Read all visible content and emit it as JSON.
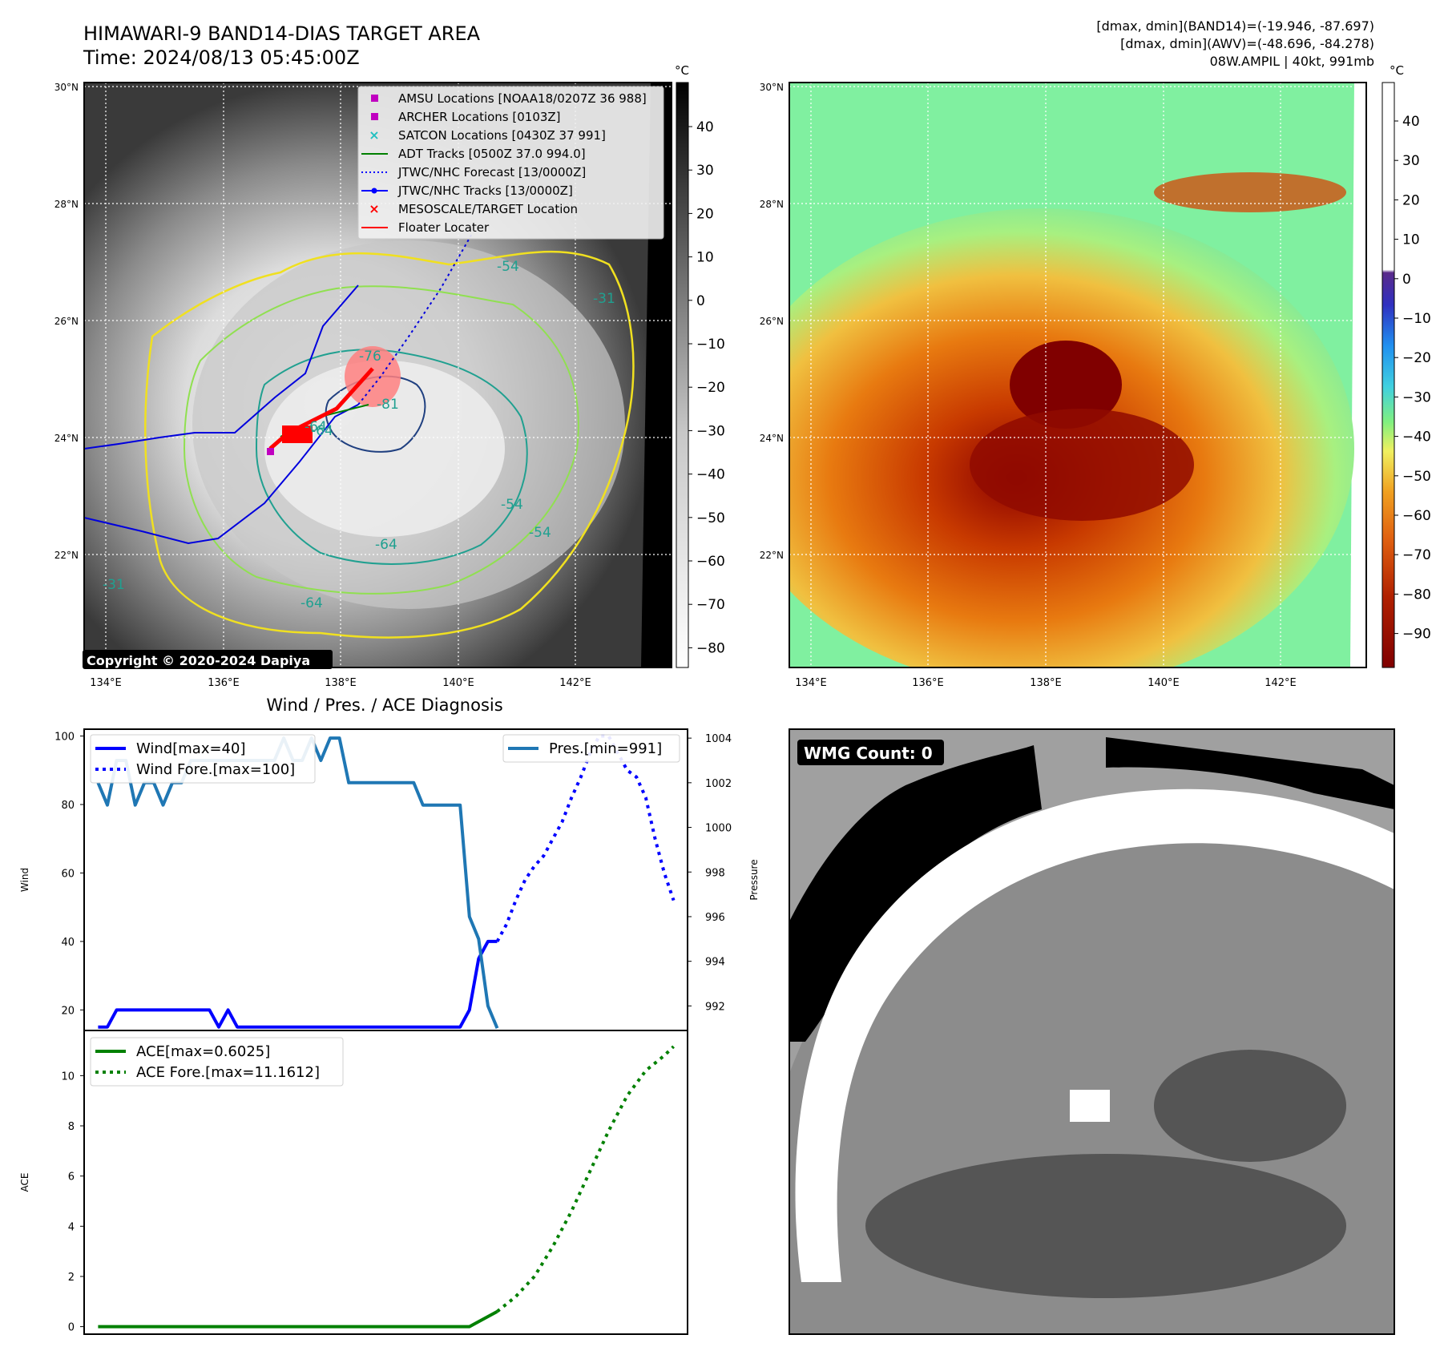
{
  "header": {
    "title_line1": "HIMAWARI-9 BAND14-DIAS TARGET AREA",
    "title_line2": "Time: 2024/08/13 05:45:00Z",
    "info_line1": "[dmax, dmin](BAND14)=(-19.946, -87.697)",
    "info_line2": "[dmax, dmin](AWV)=(-48.696, -84.278)",
    "info_line3": "08W.AMPIL | 40kt, 991mb"
  },
  "map_axes": {
    "lat_labels": [
      "30°N",
      "28°N",
      "26°N",
      "24°N",
      "22°N"
    ],
    "lon_labels": [
      "134°E",
      "136°E",
      "138°E",
      "140°E",
      "142°E"
    ]
  },
  "colorbar_left": {
    "unit": "°C",
    "ticks": [
      "40",
      "30",
      "20",
      "10",
      "0",
      "−10",
      "−20",
      "−30",
      "−40",
      "−50",
      "−60",
      "−70",
      "−80"
    ]
  },
  "colorbar_right": {
    "unit": "°C",
    "ticks": [
      "40",
      "30",
      "20",
      "10",
      "0",
      "−10",
      "−20",
      "−30",
      "−40",
      "−50",
      "−60",
      "−70",
      "−80",
      "−90"
    ]
  },
  "map_legend": [
    {
      "label": "AMSU Locations [NOAA18/0207Z 36 988]",
      "marker": "square",
      "color": "#c000c0"
    },
    {
      "label": "ARCHER Locations [0103Z]",
      "marker": "square",
      "color": "#c000c0"
    },
    {
      "label": "SATCON Locations [0430Z 37 991]",
      "marker": "x",
      "color": "#20c0c0"
    },
    {
      "label": "ADT Tracks [0500Z 37.0 994.0]",
      "marker": "line",
      "color": "#008000"
    },
    {
      "label": "JTWC/NHC Forecast [13/0000Z]",
      "marker": "dotted",
      "color": "#0000ff"
    },
    {
      "label": "JTWC/NHC Tracks [13/0000Z]",
      "marker": "line-dot",
      "color": "#0000ff"
    },
    {
      "label": "MESOSCALE/TARGET Location",
      "marker": "x",
      "color": "#ff0000"
    },
    {
      "label": "Floater Locater",
      "marker": "line",
      "color": "#ff0000"
    }
  ],
  "copyright": "Copyright © 2020-2024 Dapiya",
  "contour_labels": [
    "-64",
    "-64",
    "-54",
    "-76",
    "-81",
    "-64",
    "-54",
    "-54",
    "-64",
    "-31",
    "-31"
  ],
  "wmg_label": "WMG Count: 0",
  "diagnosis_title": "Wind / Pres. / ACE Diagnosis",
  "chart_data": [
    {
      "type": "line",
      "panel": "wind-pressure",
      "ylabel": "Wind",
      "ylabel_right": "Pressure",
      "ylim": [
        14,
        102
      ],
      "ylim_right": [
        990.9,
        1004.4
      ],
      "yticks": [
        20,
        40,
        60,
        80,
        100
      ],
      "yticks_right": [
        992,
        994,
        996,
        998,
        1000,
        1002,
        1004
      ],
      "series": [
        {
          "name": "Wind[max=40]",
          "axis": "left",
          "style": "solid",
          "color": "#0000ff",
          "x": [
            0,
            1,
            2,
            3,
            4,
            5,
            6,
            7,
            8,
            9,
            10,
            11,
            12,
            13,
            14,
            15,
            16,
            17,
            18,
            19,
            20,
            21,
            22,
            23,
            24,
            25,
            26,
            27,
            28,
            29,
            30,
            31,
            32,
            33,
            34,
            35,
            36,
            37,
            38,
            39,
            40,
            41,
            42,
            43
          ],
          "values": [
            15,
            15,
            20,
            20,
            20,
            20,
            20,
            20,
            20,
            20,
            20,
            20,
            20,
            15,
            20,
            15,
            15,
            15,
            15,
            15,
            15,
            15,
            15,
            15,
            15,
            15,
            15,
            15,
            15,
            15,
            15,
            15,
            15,
            15,
            15,
            15,
            15,
            15,
            15,
            15,
            20,
            35,
            40,
            40
          ]
        },
        {
          "name": "Wind Fore.[max=100]",
          "axis": "left",
          "style": "dotted",
          "color": "#0000ff",
          "x": [
            43,
            44,
            45,
            46,
            47,
            48,
            49,
            50,
            51,
            52,
            53,
            54,
            55,
            56,
            57,
            58,
            59,
            60,
            61,
            62
          ],
          "values": [
            40,
            45,
            52,
            58,
            62,
            65,
            70,
            75,
            82,
            88,
            95,
            100,
            100,
            95,
            90,
            88,
            82,
            70,
            60,
            52
          ]
        },
        {
          "name": "Pres.[min=991]",
          "axis": "right",
          "style": "solid",
          "color": "#1f77b4",
          "x": [
            0,
            1,
            2,
            3,
            4,
            5,
            6,
            7,
            8,
            9,
            10,
            11,
            12,
            13,
            14,
            15,
            16,
            17,
            18,
            19,
            20,
            21,
            22,
            23,
            24,
            25,
            26,
            27,
            28,
            29,
            30,
            31,
            32,
            33,
            34,
            35,
            36,
            37,
            38,
            39,
            40,
            41,
            42,
            43
          ],
          "values": [
            1002,
            1001,
            1003,
            1003,
            1001,
            1002,
            1002,
            1001,
            1002,
            1002,
            1003,
            1003,
            1003,
            1003,
            1003,
            1003,
            1003,
            1003,
            1003,
            1003,
            1004,
            1003,
            1003,
            1004,
            1003,
            1004,
            1004,
            1002,
            1002,
            1002,
            1002,
            1002,
            1002,
            1002,
            1002,
            1001,
            1001,
            1001,
            1001,
            1001,
            996,
            995,
            992,
            991
          ]
        }
      ]
    },
    {
      "type": "line",
      "panel": "ace",
      "ylabel": "ACE",
      "ylim": [
        -0.3,
        11.8
      ],
      "yticks": [
        0,
        2,
        4,
        6,
        8,
        10
      ],
      "series": [
        {
          "name": "ACE[max=0.6025]",
          "style": "solid",
          "color": "#008000",
          "x": [
            0,
            40,
            43
          ],
          "values": [
            0,
            0,
            0.6025
          ]
        },
        {
          "name": "ACE Fore.[max=11.1612]",
          "style": "dotted",
          "color": "#008000",
          "x": [
            43,
            45,
            47,
            49,
            51,
            53,
            55,
            57,
            59,
            61,
            62
          ],
          "values": [
            0.6025,
            1.2,
            2.0,
            3.2,
            4.6,
            6.2,
            7.8,
            9.2,
            10.2,
            10.8,
            11.1612
          ]
        }
      ]
    }
  ]
}
